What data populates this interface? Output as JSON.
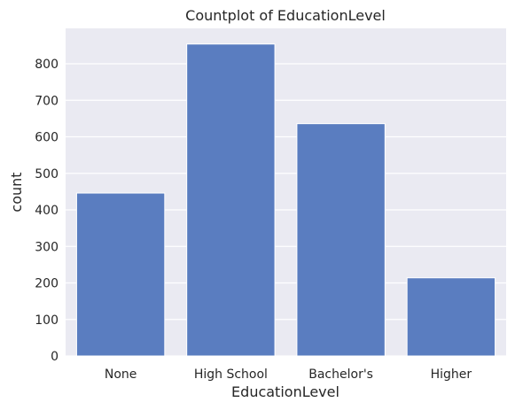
{
  "chart_data": {
    "type": "bar",
    "title": "Countplot of EducationLevel",
    "xlabel": "EducationLevel",
    "ylabel": "count",
    "categories": [
      "None",
      "High School",
      "Bachelor's",
      "Higher"
    ],
    "values": [
      446,
      854,
      636,
      214
    ],
    "ylim": [
      0,
      897
    ],
    "yticks": [
      0,
      100,
      200,
      300,
      400,
      500,
      600,
      700,
      800
    ],
    "grid": true,
    "legend": "none",
    "colors": {
      "bar": "#5a7dc0",
      "plot_background": "#eaeaf2",
      "grid": "#ffffff",
      "text": "#262626"
    }
  }
}
